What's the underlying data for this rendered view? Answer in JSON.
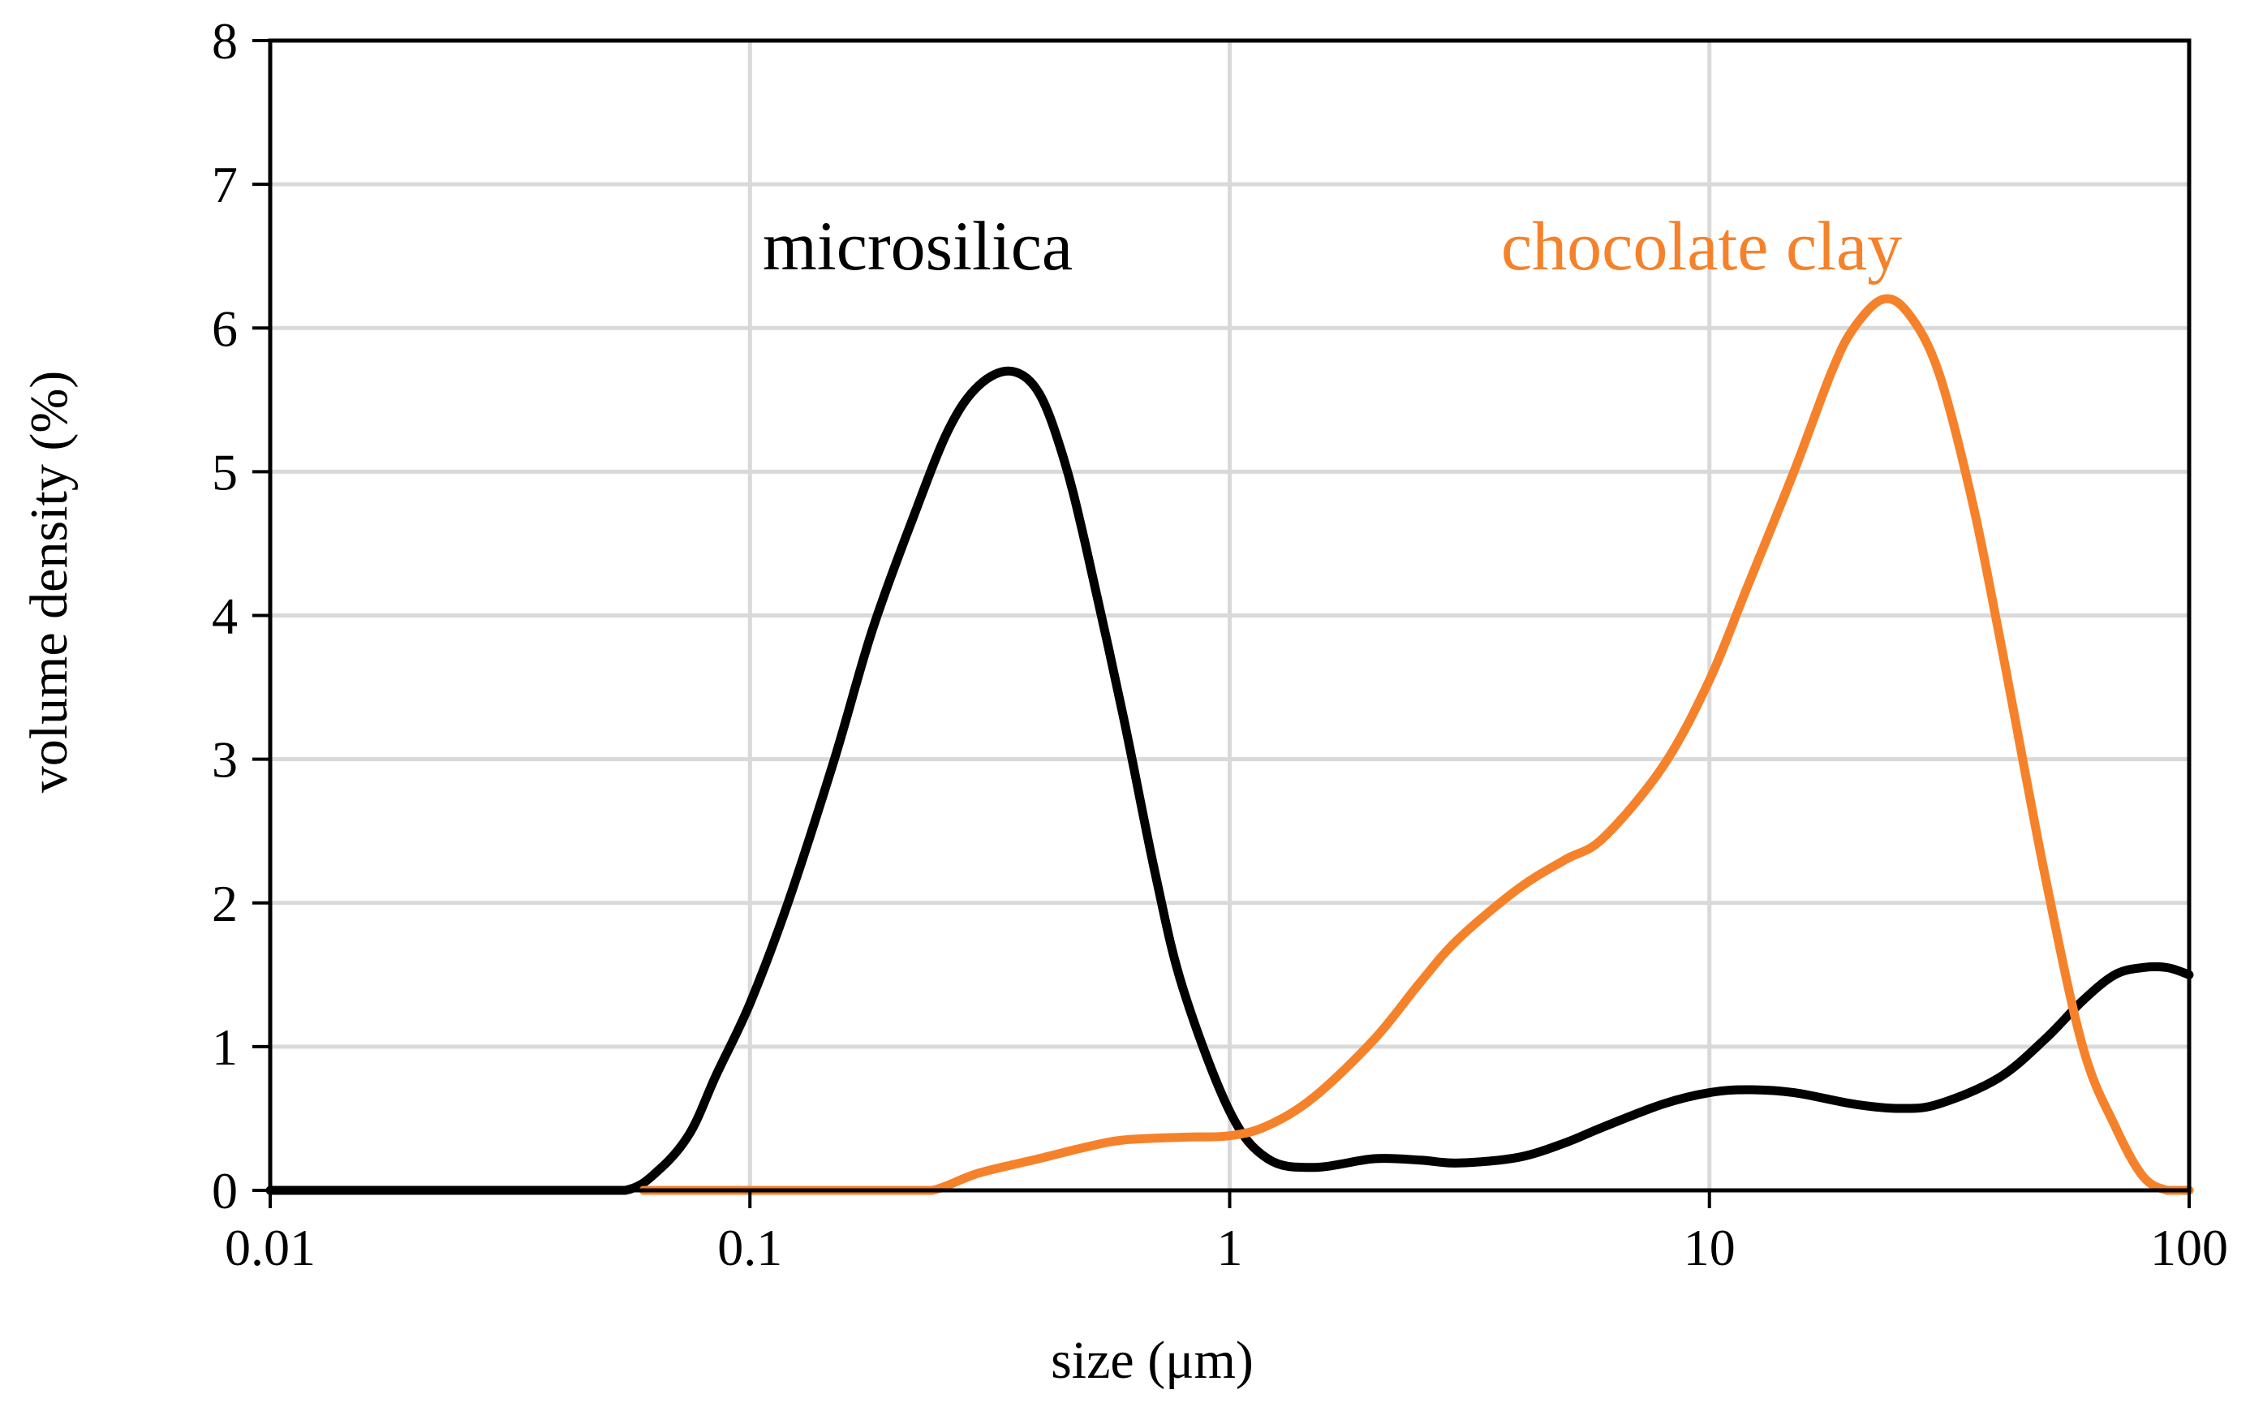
{
  "chart_data": {
    "type": "line",
    "title": "",
    "xlabel": "size (μm)",
    "ylabel": "volume density (%)",
    "xscale": "log",
    "xlim": [
      0.01,
      100
    ],
    "ylim": [
      0,
      8
    ],
    "grid": true,
    "x_ticks": [
      0.01,
      0.1,
      1,
      10,
      100
    ],
    "x_tick_labels": [
      "0.01",
      "0.1",
      "1",
      "10",
      "100"
    ],
    "y_ticks": [
      0,
      1,
      2,
      3,
      4,
      5,
      6,
      7,
      8
    ],
    "y_tick_labels": [
      "0",
      "1",
      "2",
      "3",
      "4",
      "5",
      "6",
      "7",
      "8"
    ],
    "series": [
      {
        "name": "microsilica",
        "color": "#000000",
        "x": [
          0.01,
          0.02,
          0.04,
          0.055,
          0.065,
          0.075,
          0.085,
          0.1,
          0.12,
          0.15,
          0.18,
          0.22,
          0.26,
          0.3,
          0.35,
          0.4,
          0.45,
          0.5,
          0.6,
          0.7,
          0.8,
          1.0,
          1.2,
          1.5,
          2.0,
          2.5,
          3.0,
          4.0,
          5.0,
          6.0,
          8.0,
          10.0,
          12.0,
          15.0,
          20.0,
          25.0,
          30.0,
          40.0,
          50.0,
          60.0,
          70.0,
          80.0,
          90.0,
          100.0
        ],
        "y": [
          0,
          0,
          0,
          0,
          0.15,
          0.4,
          0.8,
          1.3,
          2.0,
          3.0,
          3.9,
          4.7,
          5.3,
          5.6,
          5.7,
          5.55,
          5.1,
          4.5,
          3.3,
          2.2,
          1.4,
          0.55,
          0.22,
          0.16,
          0.22,
          0.21,
          0.19,
          0.23,
          0.33,
          0.44,
          0.6,
          0.68,
          0.7,
          0.68,
          0.6,
          0.57,
          0.6,
          0.78,
          1.05,
          1.32,
          1.5,
          1.55,
          1.55,
          1.5
        ]
      },
      {
        "name": "chocolate clay",
        "color": "#f5822a",
        "x": [
          0.06,
          0.1,
          0.2,
          0.24,
          0.3,
          0.4,
          0.5,
          0.6,
          0.8,
          1.0,
          1.2,
          1.5,
          2.0,
          2.5,
          3.0,
          4.0,
          5.0,
          6.0,
          8.0,
          10.0,
          12.0,
          15.0,
          18.0,
          20.0,
          23.0,
          26.0,
          30.0,
          35.0,
          40.0,
          50.0,
          60.0,
          70.0,
          80.0,
          90.0,
          100.0
        ],
        "y": [
          0,
          0,
          0,
          0,
          0.12,
          0.22,
          0.3,
          0.35,
          0.37,
          0.38,
          0.45,
          0.65,
          1.05,
          1.45,
          1.75,
          2.1,
          2.3,
          2.45,
          2.95,
          3.55,
          4.2,
          5.0,
          5.7,
          6.0,
          6.2,
          6.1,
          5.7,
          4.85,
          3.9,
          2.2,
          1.0,
          0.45,
          0.1,
          0.0,
          0.0
        ]
      }
    ],
    "annotations": [
      {
        "text": "microsilica",
        "color": "#000000"
      },
      {
        "text": "chocolate clay",
        "color": "#f5822a"
      }
    ]
  }
}
